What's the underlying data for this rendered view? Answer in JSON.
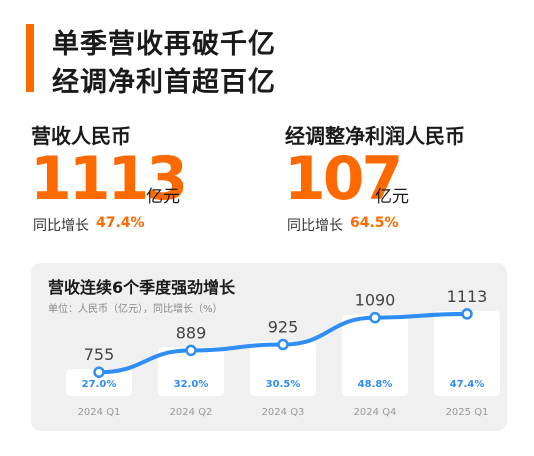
{
  "headline": {
    "line1": "单季营收再破千亿",
    "line2": "经调净利首超百亿"
  },
  "colors": {
    "accent": "#ff6a00",
    "line": "#2e8ef5",
    "panel_bg": "#f0f0f0",
    "growth_text": "#2e8ef5"
  },
  "metrics": {
    "revenue": {
      "label": "营收人民币",
      "value": "1113",
      "unit": "亿元",
      "growth_label": "同比增长",
      "growth_value": "47.4%"
    },
    "net_profit": {
      "label": "经调整净利润人民币",
      "value": "107",
      "unit": "亿元",
      "growth_label": "同比增长",
      "growth_value": "64.5%"
    }
  },
  "chart_data": {
    "type": "line",
    "title": "营收连续6个季度强劲增长",
    "subtitle": "单位：人民币（亿元），同比增长（%）",
    "categories": [
      "2024 Q1",
      "2024 Q2",
      "2024 Q3",
      "2024 Q4",
      "2025 Q1"
    ],
    "series": [
      {
        "values": [
          755,
          889,
          925,
          1090,
          1113
        ]
      }
    ],
    "growth": [
      "27.0%",
      "32.0%",
      "30.5%",
      "48.8%",
      "47.4%"
    ],
    "value_labels": [
      "755",
      "889",
      "925",
      "1090",
      "1113"
    ],
    "ylim": [
      560,
      1180
    ],
    "grid": false,
    "legend": "none"
  }
}
